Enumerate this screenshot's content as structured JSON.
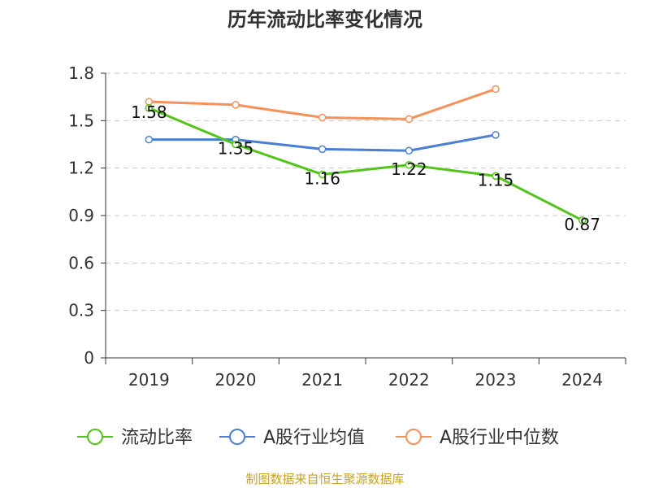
{
  "chart_data": {
    "type": "line",
    "title": "历年流动比率变化情况",
    "categories": [
      "2019",
      "2020",
      "2021",
      "2022",
      "2023",
      "2024"
    ],
    "y_ticks": [
      "0",
      "0.3",
      "0.6",
      "0.9",
      "1.2",
      "1.5",
      "1.8"
    ],
    "ylim": [
      0,
      1.8
    ],
    "grid": true,
    "legend_position": "bottom",
    "series": [
      {
        "name": "流动比率",
        "color": "#52c41a",
        "values": [
          1.58,
          1.35,
          1.16,
          1.22,
          1.15,
          0.87
        ],
        "labels": [
          "1.58",
          "1.35",
          "1.16",
          "1.22",
          "1.15",
          "0.87"
        ]
      },
      {
        "name": "A股行业均值",
        "color": "#4a7fd4",
        "values": [
          1.38,
          1.38,
          1.32,
          1.31,
          1.41,
          null
        ]
      },
      {
        "name": "A股行业中位数",
        "color": "#f5915a",
        "values": [
          1.62,
          1.6,
          1.52,
          1.51,
          1.7,
          null
        ]
      }
    ],
    "source": "制图数据来自恒生聚源数据库"
  }
}
